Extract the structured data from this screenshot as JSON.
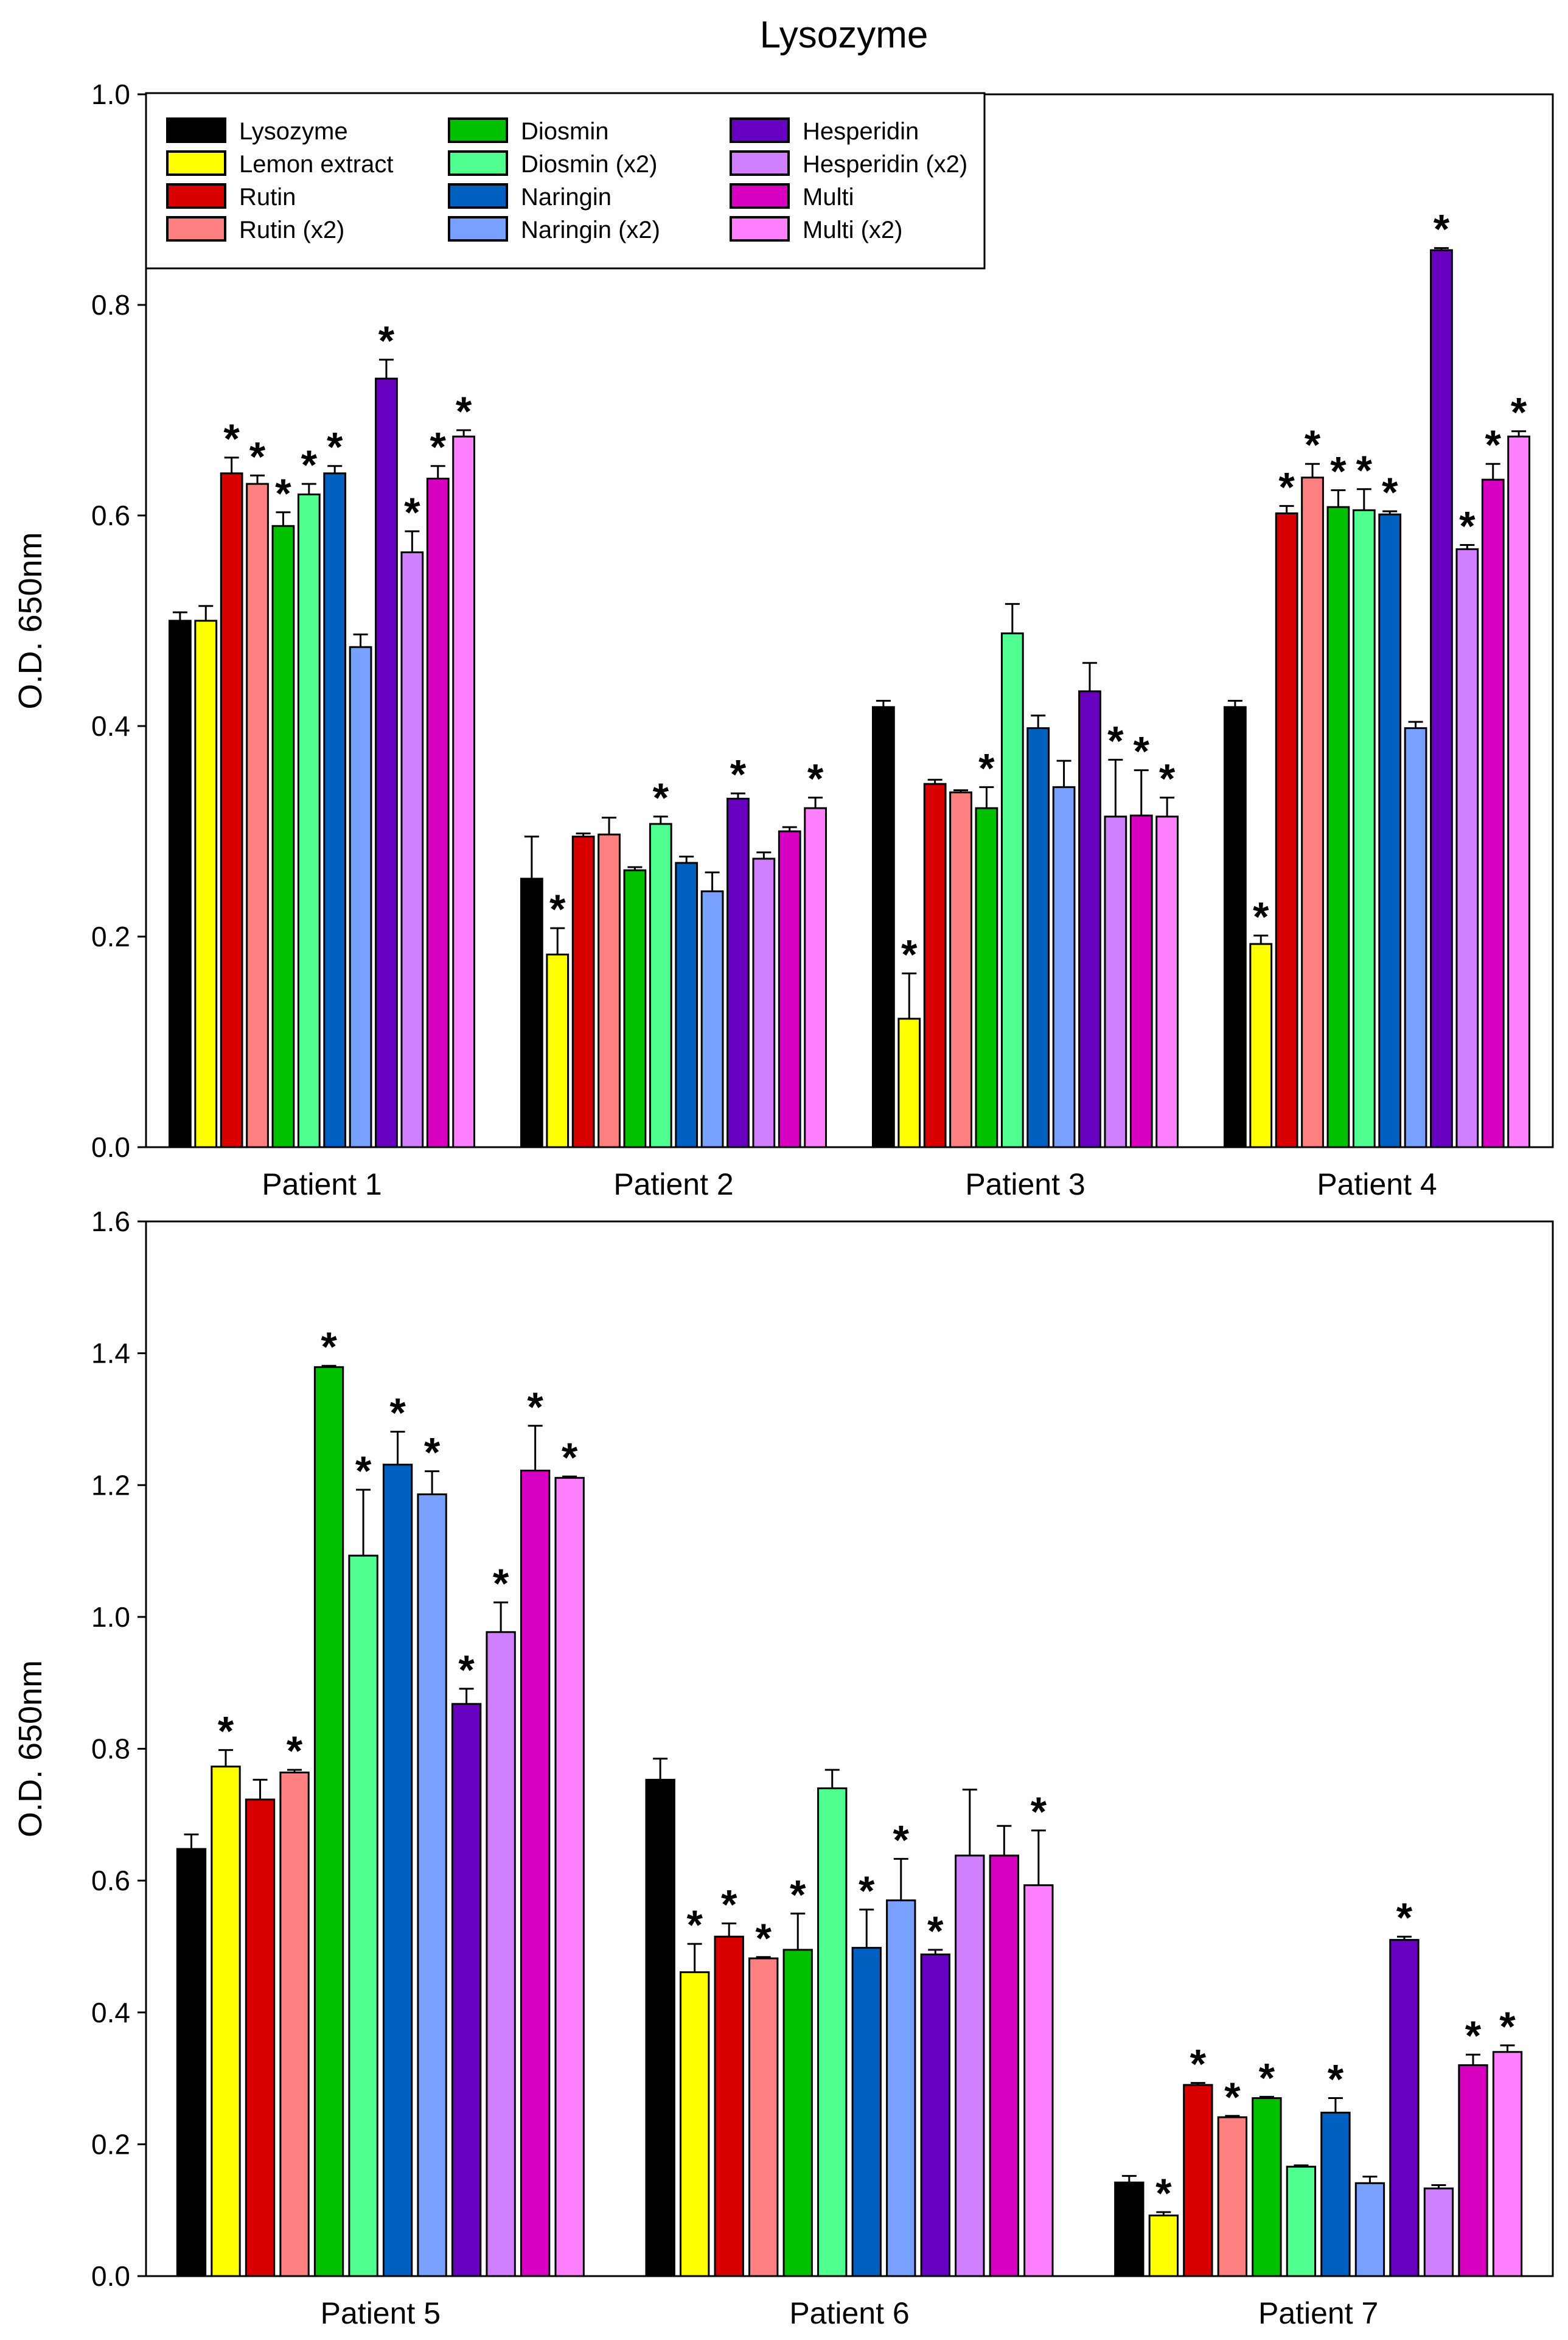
{
  "title": "Lysozyme",
  "legend": {
    "placement": "top-left",
    "items": [
      {
        "label": "Lysozyme",
        "color": "#000000"
      },
      {
        "label": "Lemon extract",
        "color": "#ffff00"
      },
      {
        "label": "Rutin",
        "color": "#d80000"
      },
      {
        "label": "Rutin (x2)",
        "color": "#ff8080"
      },
      {
        "label": "Diosmin",
        "color": "#00c000"
      },
      {
        "label": "Diosmin (x2)",
        "color": "#50ff90"
      },
      {
        "label": "Naringin",
        "color": "#0060c0"
      },
      {
        "label": "Naringin (x2)",
        "color": "#78a0ff"
      },
      {
        "label": "Hesperidin",
        "color": "#6800c0"
      },
      {
        "label": "Hesperidin (x2)",
        "color": "#d080ff"
      },
      {
        "label": "Multi",
        "color": "#d800c0"
      },
      {
        "label": "Multi (x2)",
        "color": "#ff80ff"
      }
    ]
  },
  "chart_data": [
    {
      "type": "bar",
      "ylabel": "O.D. 650nm",
      "ylim": [
        0,
        1.0
      ],
      "yticks": [
        "0.0",
        "0.2",
        "0.4",
        "0.6",
        "0.8",
        "1.0"
      ],
      "categories": [
        "Patient 1",
        "Patient 2",
        "Patient 3",
        "Patient 4"
      ],
      "values": [
        [
          0.5,
          0.5,
          0.64,
          0.63,
          0.59,
          0.62,
          0.64,
          0.475,
          0.73,
          0.565,
          0.635,
          0.675
        ],
        [
          0.255,
          0.183,
          0.295,
          0.297,
          0.263,
          0.307,
          0.27,
          0.243,
          0.331,
          0.274,
          0.3,
          0.322
        ],
        [
          0.418,
          0.122,
          0.345,
          0.337,
          0.322,
          0.488,
          0.398,
          0.342,
          0.433,
          0.314,
          0.315,
          0.314
        ],
        [
          0.418,
          0.193,
          0.602,
          0.636,
          0.608,
          0.605,
          0.601,
          0.398,
          0.852,
          0.568,
          0.634,
          0.675
        ]
      ],
      "errors": [
        [
          0.008,
          0.014,
          0.015,
          0.008,
          0.013,
          0.01,
          0.007,
          0.012,
          0.018,
          0.02,
          0.012,
          0.006
        ],
        [
          0.04,
          0.025,
          0.003,
          0.016,
          0.003,
          0.007,
          0.006,
          0.018,
          0.005,
          0.006,
          0.004,
          0.01
        ],
        [
          0.006,
          0.043,
          0.004,
          0.002,
          0.02,
          0.028,
          0.012,
          0.025,
          0.027,
          0.054,
          0.043,
          0.018
        ],
        [
          0.006,
          0.008,
          0.007,
          0.013,
          0.016,
          0.02,
          0.003,
          0.006,
          0.002,
          0.004,
          0.015,
          0.005
        ]
      ],
      "significant": [
        [
          false,
          false,
          true,
          true,
          true,
          true,
          true,
          false,
          true,
          true,
          true,
          true
        ],
        [
          false,
          true,
          false,
          false,
          false,
          true,
          false,
          false,
          true,
          false,
          false,
          true
        ],
        [
          false,
          true,
          false,
          false,
          true,
          false,
          false,
          false,
          false,
          true,
          true,
          true
        ],
        [
          false,
          true,
          true,
          true,
          true,
          true,
          true,
          false,
          true,
          true,
          true,
          true
        ]
      ],
      "significance_mark": "*"
    },
    {
      "type": "bar",
      "ylabel": "O.D. 650nm",
      "ylim": [
        0,
        1.6
      ],
      "yticks": [
        "0.0",
        "0.2",
        "0.4",
        "0.6",
        "0.8",
        "1.0",
        "1.2",
        "1.4",
        "1.6"
      ],
      "categories": [
        "Patient 5",
        "Patient 6",
        "Patient 7"
      ],
      "values": [
        [
          0.648,
          0.773,
          0.723,
          0.764,
          1.379,
          1.093,
          1.231,
          1.186,
          0.868,
          0.977,
          1.222,
          1.211
        ],
        [
          0.753,
          0.461,
          0.515,
          0.482,
          0.495,
          0.74,
          0.498,
          0.57,
          0.488,
          0.638,
          0.638,
          0.593
        ],
        [
          0.142,
          0.092,
          0.29,
          0.241,
          0.27,
          0.166,
          0.248,
          0.141,
          0.51,
          0.133,
          0.32,
          0.34
        ]
      ],
      "errors": [
        [
          0.022,
          0.025,
          0.03,
          0.004,
          0.002,
          0.1,
          0.05,
          0.035,
          0.023,
          0.045,
          0.068,
          0.002
        ],
        [
          0.032,
          0.043,
          0.02,
          0.002,
          0.055,
          0.028,
          0.058,
          0.063,
          0.007,
          0.1,
          0.045,
          0.083
        ],
        [
          0.01,
          0.005,
          0.003,
          0.002,
          0.002,
          0.002,
          0.022,
          0.01,
          0.005,
          0.005,
          0.016,
          0.01
        ]
      ],
      "significant": [
        [
          false,
          true,
          false,
          true,
          true,
          true,
          true,
          true,
          true,
          true,
          true,
          true
        ],
        [
          false,
          true,
          true,
          true,
          true,
          false,
          true,
          true,
          true,
          false,
          false,
          true
        ],
        [
          false,
          true,
          true,
          true,
          true,
          false,
          true,
          false,
          true,
          false,
          true,
          true
        ]
      ],
      "significance_mark": "*"
    }
  ]
}
